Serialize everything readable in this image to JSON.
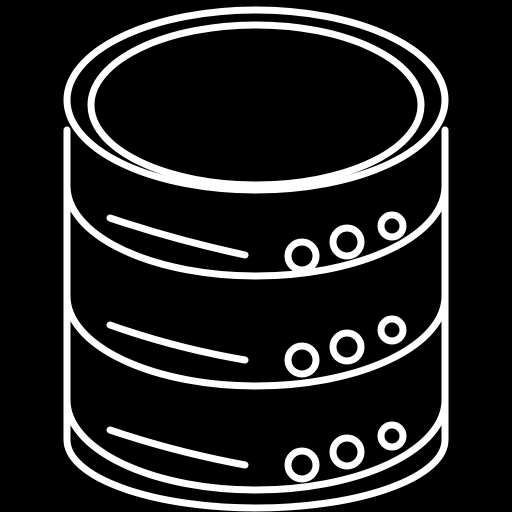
{
  "icon": {
    "name": "database-server-icon",
    "units": [
      {
        "name": "server-unit-top"
      },
      {
        "name": "server-unit-middle"
      },
      {
        "name": "server-unit-bottom"
      }
    ]
  },
  "colors": {
    "background": "#000000",
    "stroke": "#ffffff"
  }
}
